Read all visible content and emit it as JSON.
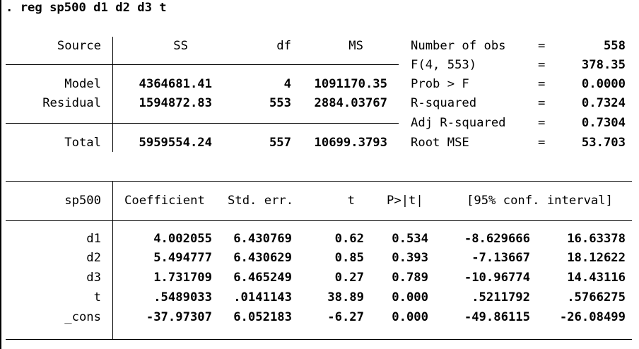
{
  "command": ". reg sp500 d1 d2 d3 t",
  "anova": {
    "headers": {
      "source": "Source",
      "ss": "SS",
      "df": "df",
      "ms": "MS"
    },
    "rows": [
      {
        "source": "Model",
        "ss": "4364681.41",
        "df": "4",
        "ms": "1091170.35"
      },
      {
        "source": "Residual",
        "ss": "1594872.83",
        "df": "553",
        "ms": "2884.03767"
      }
    ],
    "total": {
      "source": "Total",
      "ss": "5959554.24",
      "df": "557",
      "ms": "10699.3793"
    }
  },
  "stats": [
    {
      "label": "Number of obs",
      "eq": "=",
      "value": "558"
    },
    {
      "label": "F(4, 553)",
      "eq": "=",
      "value": "378.35"
    },
    {
      "label": "Prob > F",
      "eq": "=",
      "value": "0.0000"
    },
    {
      "label": "R-squared",
      "eq": "=",
      "value": "0.7324"
    },
    {
      "label": "Adj R-squared",
      "eq": "=",
      "value": "0.7304"
    },
    {
      "label": "Root MSE",
      "eq": "=",
      "value": "53.703"
    }
  ],
  "coef": {
    "headers": {
      "var": "sp500",
      "coef": "Coefficient",
      "se": "Std. err.",
      "t": "t",
      "p": "P>|t|",
      "ci": "[95% conf. interval]"
    },
    "rows": [
      {
        "var": "d1",
        "coef": "4.002055",
        "se": "6.430769",
        "t": "0.62",
        "p": "0.534",
        "lo": "-8.629666",
        "hi": "16.63378"
      },
      {
        "var": "d2",
        "coef": "5.494777",
        "se": "6.430629",
        "t": "0.85",
        "p": "0.393",
        "lo": "-7.13667",
        "hi": "18.12622"
      },
      {
        "var": "d3",
        "coef": "1.731709",
        "se": "6.465249",
        "t": "0.27",
        "p": "0.789",
        "lo": "-10.96774",
        "hi": "14.43116"
      },
      {
        "var": "t",
        "coef": ".5489033",
        "se": ".0141143",
        "t": "38.89",
        "p": "0.000",
        "lo": ".5211792",
        "hi": ".5766275"
      },
      {
        "var": "_cons",
        "coef": "-37.97307",
        "se": "6.052183",
        "t": "-6.27",
        "p": "0.000",
        "lo": "-49.86115",
        "hi": "-26.08499"
      }
    ]
  }
}
